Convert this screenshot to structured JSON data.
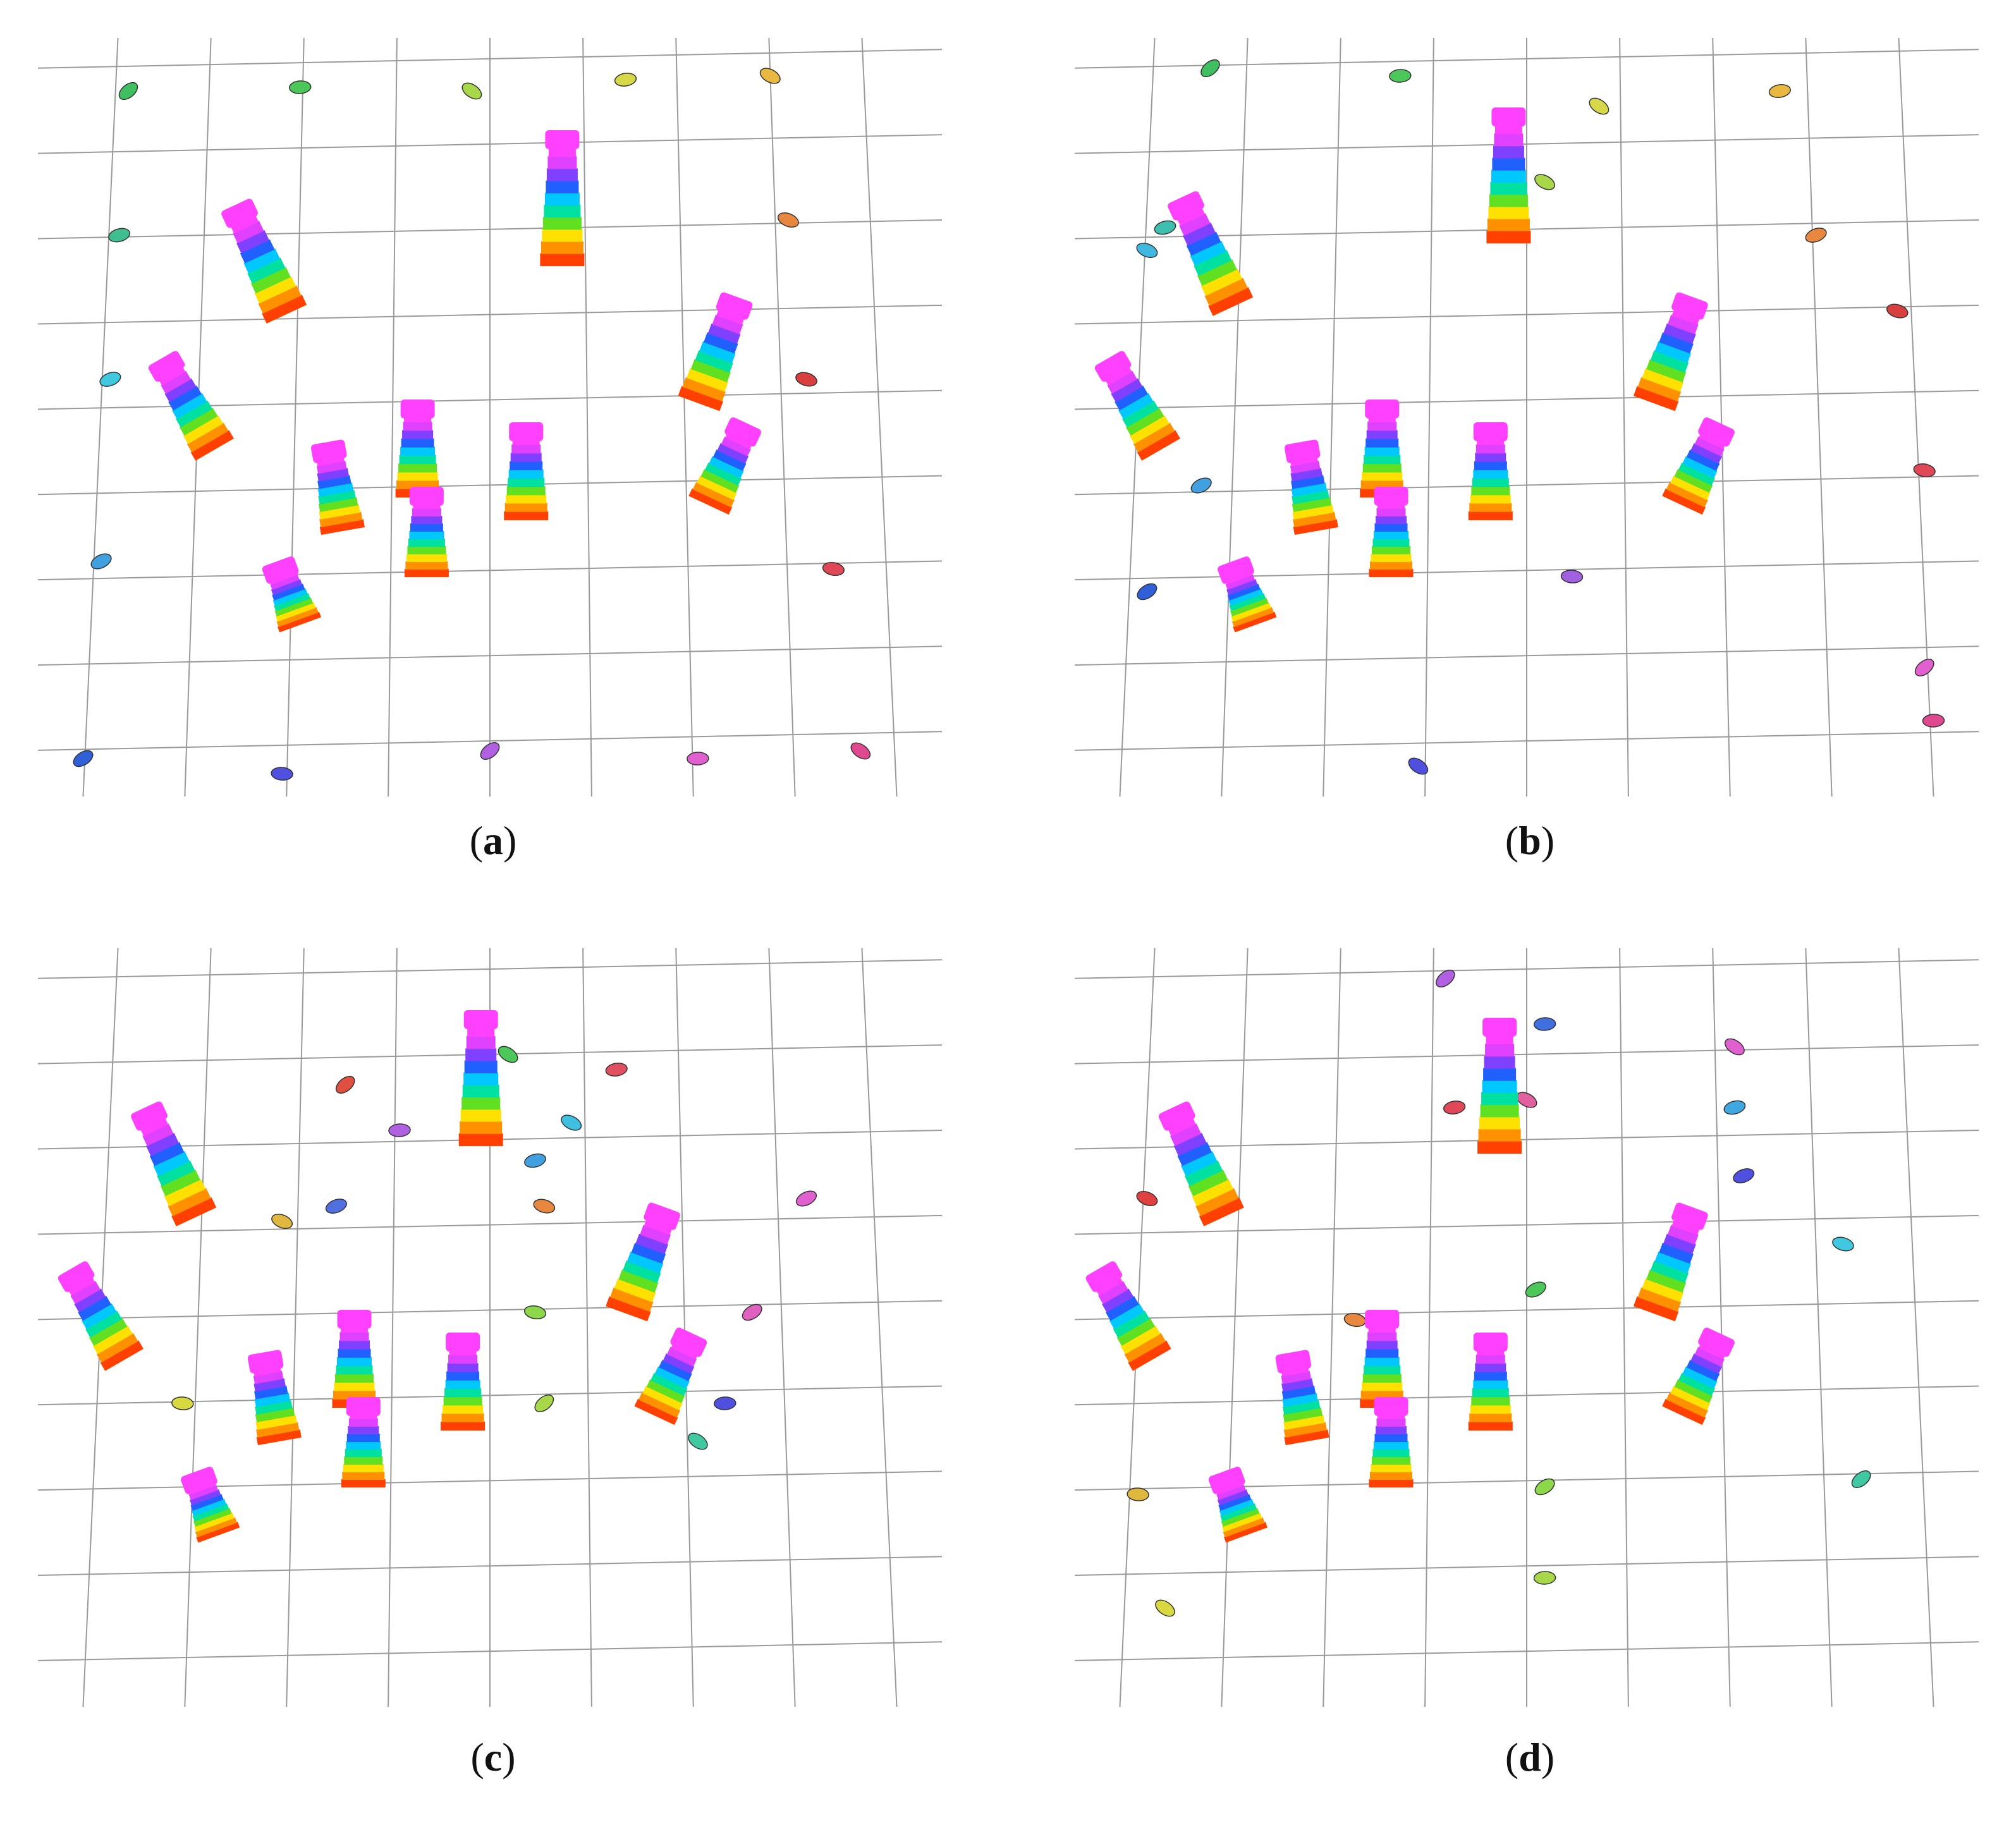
{
  "figure": {
    "panels": [
      {
        "id": "a",
        "caption": "a",
        "markers": [
          {
            "color": "#3fbf5f"
          },
          {
            "color": "#4cc85a"
          },
          {
            "color": "#a8d84a"
          },
          {
            "color": "#d6d84a"
          },
          {
            "color": "#e8b840"
          },
          {
            "color": "#3fbf90"
          },
          {
            "color": "#e88840"
          },
          {
            "color": "#40c8e0"
          },
          {
            "color": "#d84040"
          },
          {
            "color": "#40a0e0"
          },
          {
            "color": "#e04858"
          },
          {
            "color": "#3060d8"
          },
          {
            "color": "#5050e0"
          },
          {
            "color": "#b060e0"
          },
          {
            "color": "#e060d0"
          },
          {
            "color": "#e04890"
          }
        ]
      },
      {
        "id": "b",
        "caption": "b",
        "markers": [
          {
            "color": "#3fbf5f"
          },
          {
            "color": "#4cc85a"
          },
          {
            "color": "#d6d84a"
          },
          {
            "color": "#e8b840"
          },
          {
            "color": "#a8d84a"
          },
          {
            "color": "#3fbfb0"
          },
          {
            "color": "#40b8e0"
          },
          {
            "color": "#e88840"
          },
          {
            "color": "#d84040"
          },
          {
            "color": "#40a0e0"
          },
          {
            "color": "#e04858"
          },
          {
            "color": "#3060d8"
          },
          {
            "color": "#a060e0"
          },
          {
            "color": "#e060d0"
          },
          {
            "color": "#e04890"
          },
          {
            "color": "#5050e0"
          }
        ]
      },
      {
        "id": "c",
        "caption": "c",
        "markers": [
          {
            "color": "#e05040"
          },
          {
            "color": "#b060e0"
          },
          {
            "color": "#4cc85a"
          },
          {
            "color": "#e05060"
          },
          {
            "color": "#40c0e0"
          },
          {
            "color": "#40a0e0"
          },
          {
            "color": "#e0b840"
          },
          {
            "color": "#5070e0"
          },
          {
            "color": "#e88840"
          },
          {
            "color": "#e060d0"
          },
          {
            "color": "#8cd84a"
          },
          {
            "color": "#e060c0"
          },
          {
            "color": "#d8d840"
          },
          {
            "color": "#a8d84a"
          },
          {
            "color": "#5050e0"
          },
          {
            "color": "#40c8a0"
          }
        ]
      },
      {
        "id": "d",
        "caption": "d",
        "markers": [
          {
            "color": "#b060e0"
          },
          {
            "color": "#4070e0"
          },
          {
            "color": "#e060d0"
          },
          {
            "color": "#e04858"
          },
          {
            "color": "#e060a0"
          },
          {
            "color": "#40a8e0"
          },
          {
            "color": "#e04040"
          },
          {
            "color": "#5050e0"
          },
          {
            "color": "#40c8e0"
          },
          {
            "color": "#4cc85a"
          },
          {
            "color": "#e88840"
          },
          {
            "color": "#8cd84a"
          },
          {
            "color": "#e0b840"
          },
          {
            "color": "#40c8a0"
          },
          {
            "color": "#a8d84a"
          },
          {
            "color": "#d8d840"
          }
        ]
      }
    ]
  }
}
